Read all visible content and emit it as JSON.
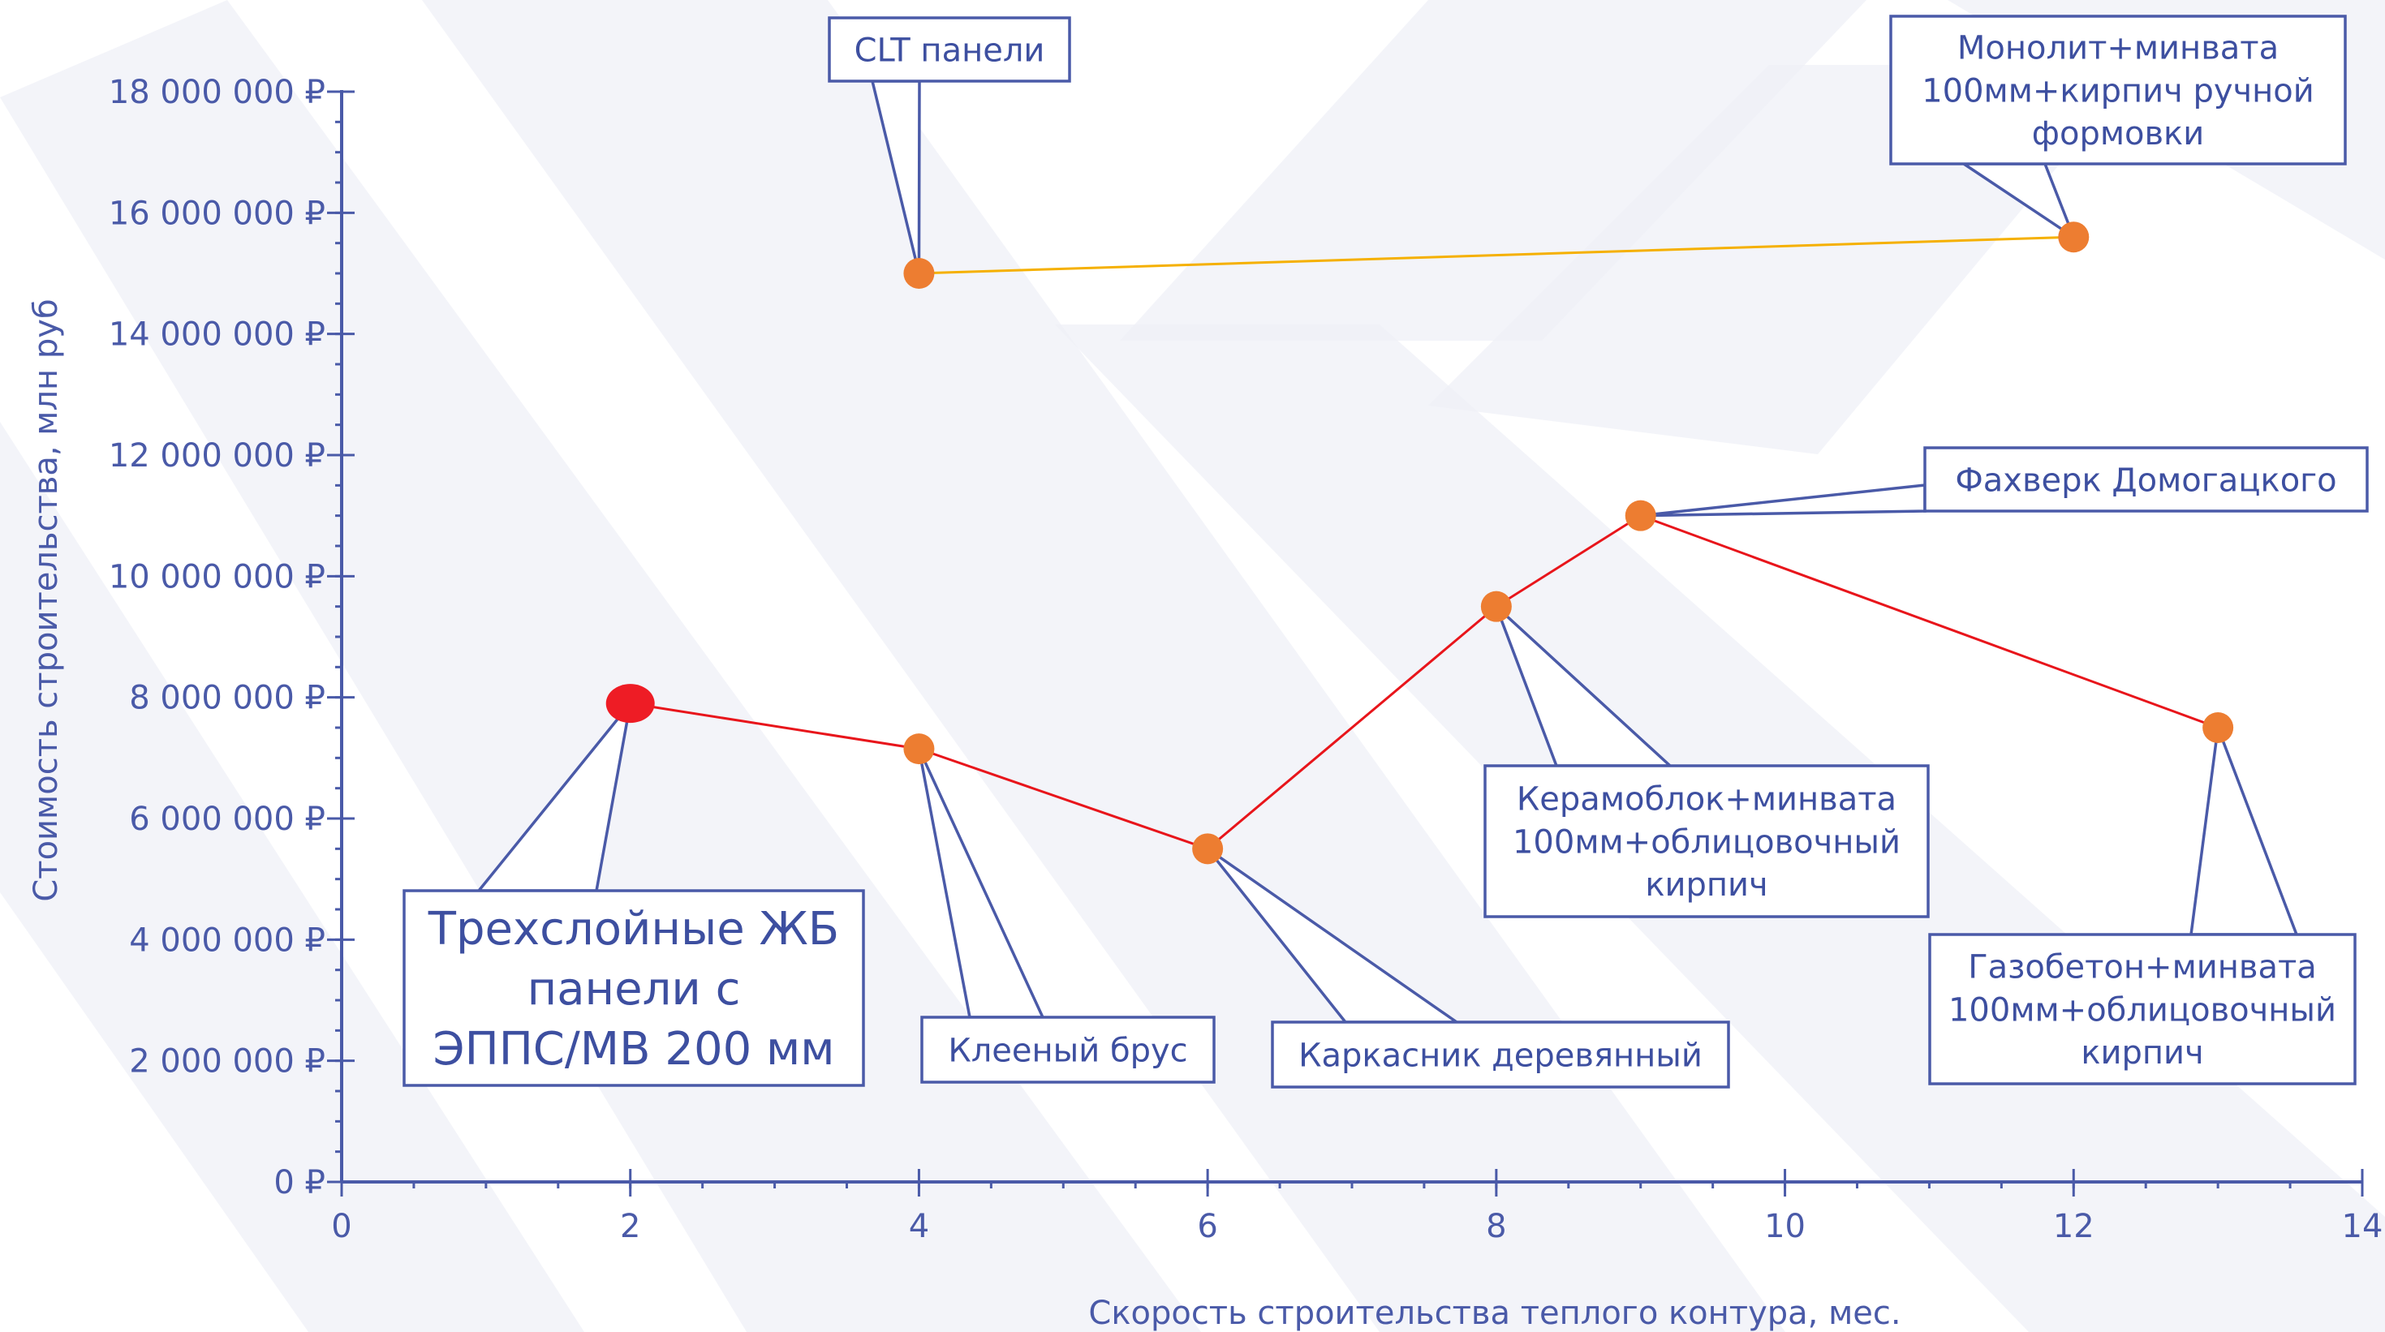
{
  "chart_data": {
    "type": "line",
    "xlabel": "Скорость строительства теплого контура, мес.",
    "ylabel": "Стоимость строительства, млн руб",
    "xlim": [
      0,
      14
    ],
    "ylim": [
      0,
      18000000
    ],
    "x_ticks": [
      0,
      2,
      4,
      6,
      8,
      10,
      12,
      14
    ],
    "y_ticks": [
      0,
      2000000,
      4000000,
      6000000,
      8000000,
      10000000,
      12000000,
      14000000,
      16000000,
      18000000
    ],
    "y_tick_labels": [
      "0 ₽",
      "2 000 000 ₽",
      "4 000 000 ₽",
      "6 000 000 ₽",
      "8 000 000 ₽",
      "10 000 000 ₽",
      "12 000 000 ₽",
      "14 000 000 ₽",
      "16 000 000 ₽",
      "18 000 000 ₽"
    ],
    "grid": false,
    "legend": "none",
    "series": [
      {
        "color": "#e8151b",
        "points": [
          {
            "x": 2,
            "y": 7900000,
            "label": "Трехслойные ЖБ панели с ЭППС/МВ 200 мм",
            "marker": "#ee1c25"
          },
          {
            "x": 4,
            "y": 7150000,
            "label": "Клееный брус",
            "marker": "#ed7d31"
          },
          {
            "x": 6,
            "y": 5500000,
            "label": "Каркасник деревянный",
            "marker": "#ed7d31"
          },
          {
            "x": 8,
            "y": 9500000,
            "label": "Керамоблок+минвата 100мм+облицовочный кирпич",
            "marker": "#ed7d31"
          },
          {
            "x": 9,
            "y": 11000000,
            "label": "Фахверк Домогацкого",
            "marker": "#ed7d31"
          },
          {
            "x": 13,
            "y": 7500000,
            "label": "Газобетон+минвата 100мм+облицовочный кирпич",
            "marker": "#ed7d31"
          }
        ]
      },
      {
        "color": "#f5b000",
        "points": [
          {
            "x": 4,
            "y": 15000000,
            "label": "CLT панели",
            "marker": "#ed7d31"
          },
          {
            "x": 12,
            "y": 15600000,
            "label": "Монолит+минвата 100мм+кирпич ручной формовки",
            "marker": "#ed7d31"
          }
        ]
      }
    ],
    "callouts": [
      {
        "lines": [
          "CLT панели"
        ]
      },
      {
        "lines": [
          "Монолит+минвата",
          "100мм+кирпич ручной",
          "формовки"
        ]
      },
      {
        "lines": [
          "Фахверк Домогацкого"
        ]
      },
      {
        "lines": [
          "Керамоблок+минвата",
          "100мм+облицовочный",
          "кирпич"
        ]
      },
      {
        "lines": [
          "Трехслойные ЖБ",
          "панели с",
          "ЭППС/МВ 200 мм"
        ]
      },
      {
        "lines": [
          "Клееный брус"
        ]
      },
      {
        "lines": [
          "Каркасник деревянный"
        ]
      },
      {
        "lines": [
          "Газобетон+минвата",
          "100мм+облицовочный",
          "кирпич"
        ]
      }
    ]
  },
  "colors": {
    "axis": "#4a5aa8",
    "callout_border": "#4a5aa8",
    "callout_text": "#3d4fa0",
    "marker": "#ed7d31",
    "highlight_marker": "#ee1c25",
    "line_main": "#e8151b",
    "line_secondary": "#f5b000",
    "background_stripe": "#eef0f7"
  }
}
